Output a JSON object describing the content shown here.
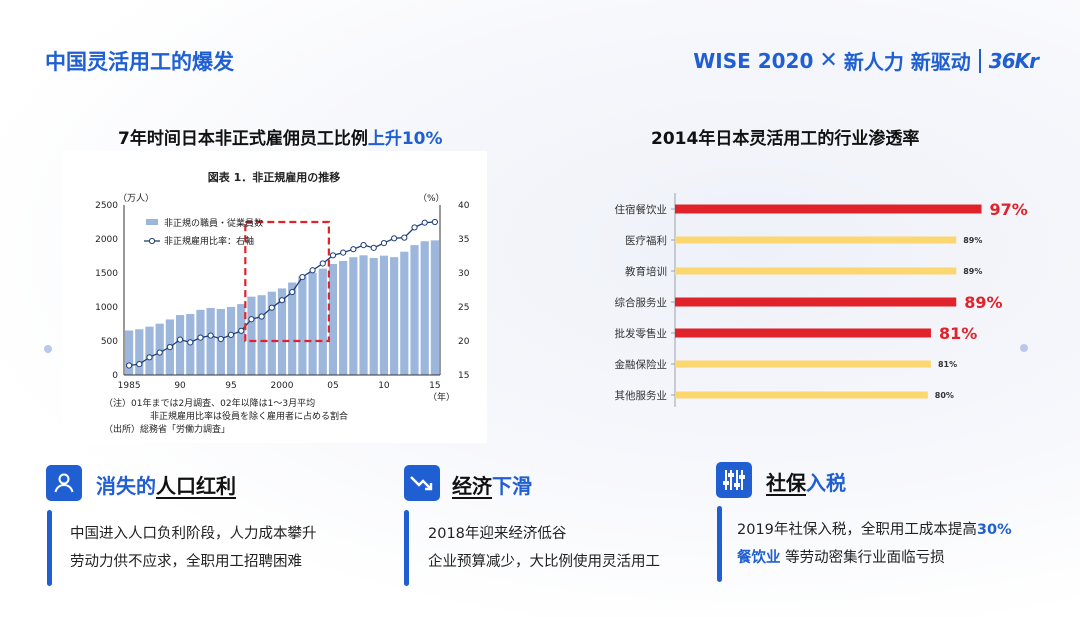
{
  "header": {
    "title": "中国灵活用工的爆发",
    "brand_wise": "WISE 2020",
    "brand_x": "✕",
    "brand_slogan": "新人力 新驱动",
    "brand_logo": "36Kr"
  },
  "left_section": {
    "title_main": "7年时间日本非正式雇佣员工比例",
    "title_highlight": "上升10%"
  },
  "right_section": {
    "title": "2014年日本灵活用工的行业渗透率"
  },
  "chart_data": [
    {
      "type": "bar+line",
      "title": "図表 1．非正規雇用の推移",
      "y_left_label": "（万人）",
      "y_right_label": "（%）",
      "x_unit_label": "（年）",
      "x": [
        1985,
        1986,
        1987,
        1988,
        1989,
        1990,
        1991,
        1992,
        1993,
        1994,
        1995,
        1996,
        1997,
        1998,
        1999,
        2000,
        2001,
        2002,
        2003,
        2004,
        2005,
        2006,
        2007,
        2008,
        2009,
        2010,
        2011,
        2012,
        2013,
        2014,
        2015
      ],
      "x_tick_labels": [
        "1985",
        "90",
        "95",
        "2000",
        "05",
        "10",
        "15"
      ],
      "y_left_ticks": [
        "0",
        "500",
        "1000",
        "1500",
        "2000",
        "2500"
      ],
      "y_left_range": [
        0,
        2500
      ],
      "y_right_ticks": [
        "15",
        "20",
        "25",
        "30",
        "35",
        "40"
      ],
      "y_right_range": [
        15,
        40
      ],
      "series": [
        {
          "name": "非正規の職員・従業員数",
          "type": "bar",
          "color": "#9cb6dc",
          "values": [
            655,
            673,
            711,
            755,
            817,
            881,
            897,
            958,
            986,
            971,
            1001,
            1043,
            1152,
            1173,
            1225,
            1273,
            1360,
            1451,
            1504,
            1564,
            1633,
            1677,
            1732,
            1760,
            1721,
            1755,
            1733,
            1813,
            1910,
            1967,
            1980
          ]
        },
        {
          "name": "非正規雇用比率：右軸",
          "type": "line",
          "color": "#1f3f7a",
          "values": [
            16.4,
            16.6,
            17.6,
            18.3,
            19.1,
            20.2,
            19.8,
            20.5,
            20.8,
            20.3,
            20.9,
            21.5,
            23.2,
            23.6,
            24.9,
            26.0,
            27.2,
            29.4,
            30.4,
            31.4,
            32.6,
            33.0,
            33.5,
            34.1,
            33.7,
            34.4,
            35.1,
            35.2,
            36.7,
            37.4,
            37.5
          ]
        }
      ],
      "highlight_box": {
        "x_from": 1997,
        "x_to": 2004
      },
      "notes": [
        "（注）01年までは2月調査、02年以降は1～3月平均",
        "非正規雇用比率は役員を除く雇用者に占める割合",
        "（出所）総務省「労働力調査」"
      ]
    },
    {
      "type": "bar",
      "orientation": "horizontal",
      "title": "2014年日本灵活用工的行业渗透率",
      "categories": [
        "住宿餐饮业",
        "医疗福利",
        "教育培训",
        "综合服务业",
        "批发零售业",
        "金融保险业",
        "其他服务业"
      ],
      "values": [
        97,
        89,
        89,
        89,
        81,
        81,
        80
      ],
      "value_labels": [
        "97%",
        "89%",
        "89%",
        "89%",
        "81%",
        "81%",
        "80%"
      ],
      "emphasized": [
        true,
        false,
        false,
        true,
        true,
        false,
        false
      ],
      "colors": {
        "emphasis": "#e0232a",
        "normal": "#fcd66f"
      }
    }
  ],
  "cards": [
    {
      "icon": "user-icon",
      "title_pre": "消失的",
      "title_underlined": "人口红利",
      "line1": "中国进入人口负利阶段，人力成本攀升",
      "line2": "劳动力供不应求，全职用工招聘困难"
    },
    {
      "icon": "trend-down-icon",
      "title_pre": "经济",
      "title_blue": "下滑",
      "line1": "2018年迎来经济低谷",
      "line2": "企业预算减少，大比例使用灵活用工"
    },
    {
      "icon": "sliders-icon",
      "title_pre": "社保",
      "title_blue": "入税",
      "line1_pre": "2019年社保入税，全职用工成本提高",
      "line1_hl": "30%",
      "line2_hl": "餐饮业",
      "line2_post": " 等劳动密集行业面临亏损"
    }
  ]
}
